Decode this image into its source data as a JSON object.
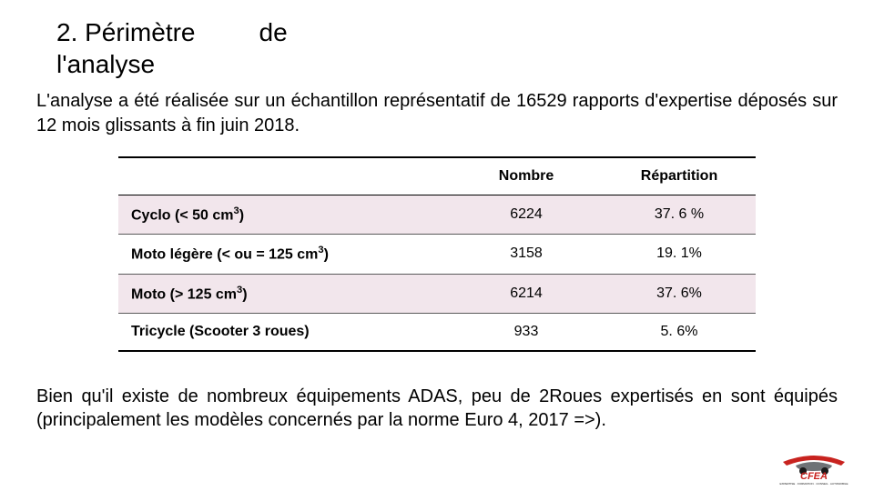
{
  "heading_line1": "2. Périmètre         de",
  "heading_line2": "l'analyse",
  "intro": "L'analyse a été réalisée sur un échantillon représentatif de 16529 rapports d'expertise déposés sur 12 mois glissants à fin juin 2018.",
  "table": {
    "columns": [
      "",
      "Nombre",
      "Répartition"
    ],
    "rows": [
      {
        "label_html": "Cyclo (< 50 cm<sup>3</sup>)",
        "nombre": "6224",
        "repartition": "37. 6 %",
        "stripe": true
      },
      {
        "label_html": "Moto légère (< ou = 125 cm<sup>3</sup>)",
        "nombre": "3158",
        "repartition": "19. 1%",
        "stripe": false
      },
      {
        "label_html": "Moto (> 125 cm<sup>3</sup>)",
        "nombre": "6214",
        "repartition": "37. 6%",
        "stripe": true
      },
      {
        "label_html": "Tricycle (Scooter 3 roues)",
        "nombre": "933",
        "repartition": "5. 6%",
        "stripe": false
      }
    ],
    "stripe_color": "#f2e6ec",
    "border_color": "#000000",
    "header_fontsize": 16,
    "cell_fontsize": 16,
    "col_widths_pct": [
      52,
      24,
      24
    ]
  },
  "closing": "Bien qu'il existe de nombreux équipements ADAS, peu de 2Roues expertisés en sont équipés (principalement les modèles concernés par la norme Euro 4, 2017 =>).",
  "logo": {
    "top_text": "CFEA",
    "bottom_text": "EXPERTISE · FORMATION · CONSEIL · AUTOMOBILE",
    "red": "#c8231f",
    "grey": "#6f7276",
    "black": "#1a1a1a"
  }
}
